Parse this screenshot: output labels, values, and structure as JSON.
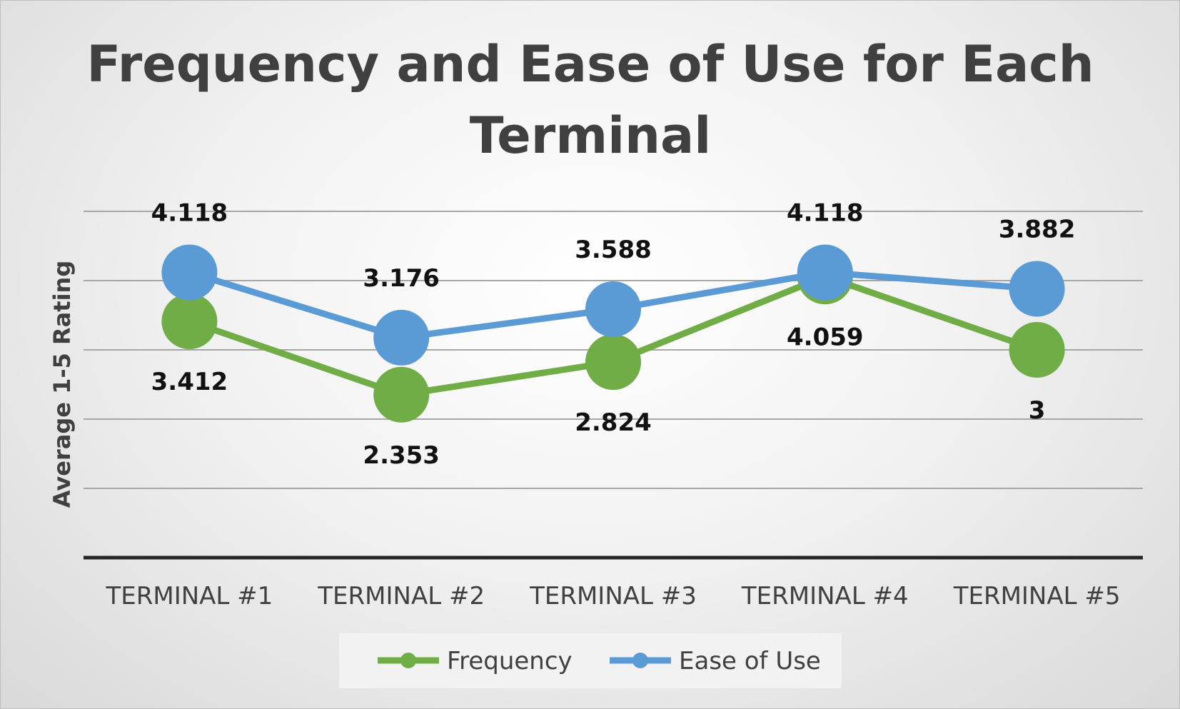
{
  "chart_data": {
    "type": "line",
    "title": "Frequency and Ease of Use for Each Terminal",
    "title_lines": [
      "Frequency and Ease of Use for Each",
      "Terminal"
    ],
    "xlabel": "",
    "ylabel": "Average 1-5 Rating",
    "categories": [
      "TERMINAL #1",
      "TERMINAL #2",
      "TERMINAL #3",
      "TERMINAL #4",
      "TERMINAL #5"
    ],
    "series": [
      {
        "name": "Frequency",
        "values": [
          3.412,
          2.353,
          2.824,
          4.059,
          3
        ],
        "labels": [
          "3.412",
          "2.353",
          "2.824",
          "4.059",
          "3"
        ],
        "color": "#70ad47"
      },
      {
        "name": "Ease of Use",
        "values": [
          4.118,
          3.176,
          3.588,
          4.118,
          3.882
        ],
        "labels": [
          "4.118",
          "3.176",
          "3.588",
          "4.118",
          "3.882"
        ],
        "color": "#5b9bd5"
      }
    ],
    "ylim": [
      0,
      5
    ],
    "grid": true,
    "y_tick_labels_shown": false,
    "legend_position": "bottom"
  }
}
